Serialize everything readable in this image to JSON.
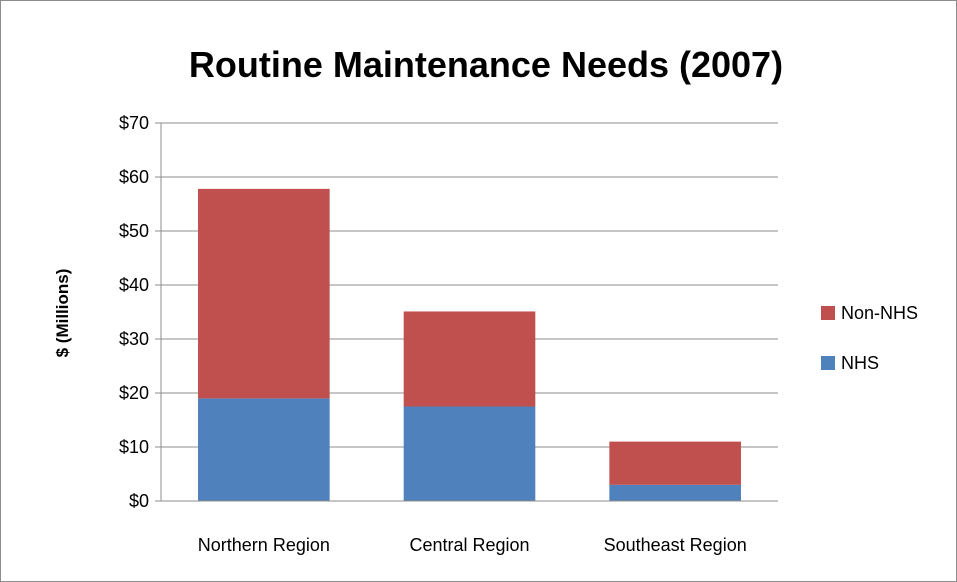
{
  "chart_data": {
    "type": "bar",
    "stacked": true,
    "title": "Routine Maintenance Needs (2007)",
    "xlabel": "",
    "ylabel": "$ (Millions)",
    "categories": [
      "Northern Region",
      "Central Region",
      "Southeast Region"
    ],
    "series": [
      {
        "name": "NHS",
        "values": [
          19,
          17.5,
          3
        ],
        "color": "#4f81bd"
      },
      {
        "name": "Non-NHS",
        "values": [
          38.8,
          17.6,
          8
        ],
        "color": "#c0504d"
      }
    ],
    "ylim": [
      0,
      70
    ],
    "yticks": [
      0,
      10,
      20,
      30,
      40,
      50,
      60,
      70
    ],
    "ytick_labels": [
      "$0",
      "$10",
      "$20",
      "$30",
      "$40",
      "$50",
      "$60",
      "$70"
    ],
    "grid": true,
    "legend_position": "right",
    "legend_order": [
      "Non-NHS",
      "NHS"
    ]
  }
}
